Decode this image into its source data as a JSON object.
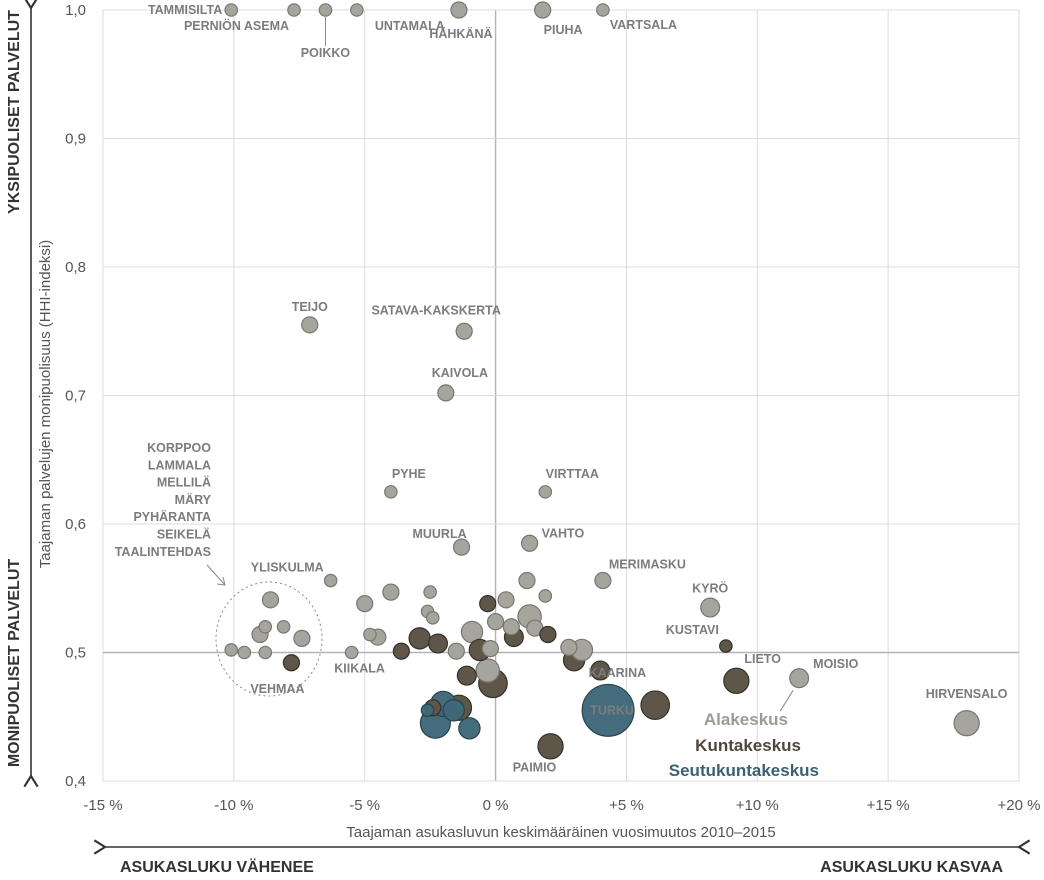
{
  "chart_data": {
    "type": "scatter",
    "xlabel": "Taajaman asukasluvun keskimääräinen vuosimuutos 2010–2015",
    "ylabel": "Taajaman palvelujen monipuolisuus (HHI-indeksi)",
    "xlim": [
      -15,
      20
    ],
    "ylim": [
      0.4,
      1.0
    ],
    "x_ticks": [
      "-15 %",
      "-10 %",
      "-5 %",
      "0 %",
      "+5 %",
      "+10 %",
      "+15 %",
      "+20 %"
    ],
    "y_ticks": [
      "0,4",
      "0,5",
      "0,6",
      "0,7",
      "0,8",
      "0,9",
      "1,0"
    ],
    "grid": true,
    "side_labels": {
      "top_left": "YKSIPUOLISET PALVELUT",
      "bottom_left": "MONIPUOLISET PALVELUT",
      "bottom_left_arrow": "ASUKASLUKU VÄHENEE",
      "bottom_right_arrow": "ASUKASLUKU KASVAA"
    },
    "series": [
      {
        "name": "Alakeskus",
        "color": "#a5a49d"
      },
      {
        "name": "Kuntakeskus",
        "color": "#5e5649"
      },
      {
        "name": "Seutukuntakeskus",
        "color": "#3f6778"
      }
    ],
    "points": [
      {
        "label": "TAMMISILTA",
        "x": -10.1,
        "y": 1.0,
        "size": 1,
        "category": 0
      },
      {
        "label": "PERNIÖN ASEMA",
        "x": -7.7,
        "y": 1.0,
        "size": 1,
        "category": 0
      },
      {
        "label": "POIKKO",
        "x": -6.5,
        "y": 1.0,
        "size": 1,
        "category": 0
      },
      {
        "label": "UNTAMALA",
        "x": -5.3,
        "y": 1.0,
        "size": 1,
        "category": 0
      },
      {
        "label": "HÄHKÄNÄ",
        "x": -1.4,
        "y": 1.0,
        "size": 2,
        "category": 0
      },
      {
        "label": "PIUHA",
        "x": 1.8,
        "y": 1.0,
        "size": 2,
        "category": 0
      },
      {
        "label": "VARTSALA",
        "x": 4.1,
        "y": 1.0,
        "size": 1,
        "category": 0
      },
      {
        "label": "TEIJO",
        "x": -7.1,
        "y": 0.755,
        "size": 2,
        "category": 0
      },
      {
        "label": "SATAVA-KAKSKERTA",
        "x": -1.2,
        "y": 0.75,
        "size": 2,
        "category": 0
      },
      {
        "label": "KAIVOLA",
        "x": -1.9,
        "y": 0.702,
        "size": 2,
        "category": 0
      },
      {
        "label": "PYHE",
        "x": -4.0,
        "y": 0.625,
        "size": 1,
        "category": 0
      },
      {
        "label": "VIRTTAA",
        "x": 1.9,
        "y": 0.625,
        "size": 1,
        "category": 0
      },
      {
        "label": "MUURLA",
        "x": -1.3,
        "y": 0.582,
        "size": 2,
        "category": 0
      },
      {
        "label": "VAHTO",
        "x": 1.3,
        "y": 0.585,
        "size": 2,
        "category": 0
      },
      {
        "label": "YLISKULMA",
        "x": -6.3,
        "y": 0.556,
        "size": 1,
        "category": 0
      },
      {
        "label": "MERIMASKU",
        "x": 4.1,
        "y": 0.556,
        "size": 2,
        "category": 0
      },
      {
        "label": "KYRÖ",
        "x": 8.2,
        "y": 0.535,
        "size": 3,
        "category": 0
      },
      {
        "label": "KUSTAVI",
        "x": 8.8,
        "y": 0.505,
        "size": 1,
        "category": 1
      },
      {
        "label": "KIIKALA",
        "x": -5.5,
        "y": 0.5,
        "size": 1,
        "category": 0
      },
      {
        "label": "VEHMAA",
        "x": -7.8,
        "y": 0.492,
        "size": 2,
        "category": 1
      },
      {
        "label": "LIETO",
        "x": 9.2,
        "y": 0.478,
        "size": 6,
        "category": 1
      },
      {
        "label": "MOISIO",
        "x": 11.6,
        "y": 0.48,
        "size": 3,
        "category": 0
      },
      {
        "label": "KAARINA",
        "x": 6.1,
        "y": 0.459,
        "size": 8,
        "category": 1
      },
      {
        "label": "HIRVENSALO",
        "x": 18.0,
        "y": 0.445,
        "size": 6,
        "category": 0
      },
      {
        "label": "TURKU",
        "x": 4.3,
        "y": 0.455,
        "size": 30,
        "category": 2
      },
      {
        "label": "PAIMIO",
        "x": 2.1,
        "y": 0.427,
        "size": 6,
        "category": 1
      },
      {
        "label": "",
        "x": -10.1,
        "y": 0.502,
        "size": 1,
        "category": 0
      },
      {
        "label": "",
        "x": -9.6,
        "y": 0.5,
        "size": 1,
        "category": 0
      },
      {
        "label": "",
        "x": -9.0,
        "y": 0.514,
        "size": 2,
        "category": 0
      },
      {
        "label": "",
        "x": -8.8,
        "y": 0.52,
        "size": 1,
        "category": 0
      },
      {
        "label": "",
        "x": -8.8,
        "y": 0.5,
        "size": 1,
        "category": 0
      },
      {
        "label": "",
        "x": -8.6,
        "y": 0.541,
        "size": 2,
        "category": 0
      },
      {
        "label": "",
        "x": -8.1,
        "y": 0.52,
        "size": 1,
        "category": 0
      },
      {
        "label": "",
        "x": -7.4,
        "y": 0.511,
        "size": 2,
        "category": 0
      },
      {
        "label": "",
        "x": -5.0,
        "y": 0.538,
        "size": 2,
        "category": 0
      },
      {
        "label": "",
        "x": -4.8,
        "y": 0.514,
        "size": 1,
        "category": 0
      },
      {
        "label": "",
        "x": -4.5,
        "y": 0.512,
        "size": 2,
        "category": 0
      },
      {
        "label": "",
        "x": -4.0,
        "y": 0.547,
        "size": 2,
        "category": 0
      },
      {
        "label": "",
        "x": -3.6,
        "y": 0.501,
        "size": 2,
        "category": 1
      },
      {
        "label": "",
        "x": -2.9,
        "y": 0.511,
        "size": 4,
        "category": 1
      },
      {
        "label": "",
        "x": -2.5,
        "y": 0.547,
        "size": 1,
        "category": 0
      },
      {
        "label": "",
        "x": -2.6,
        "y": 0.532,
        "size": 1,
        "category": 0
      },
      {
        "label": "",
        "x": -2.4,
        "y": 0.527,
        "size": 1,
        "category": 0
      },
      {
        "label": "",
        "x": -2.2,
        "y": 0.507,
        "size": 3,
        "category": 1
      },
      {
        "label": "",
        "x": -1.5,
        "y": 0.501,
        "size": 2,
        "category": 0
      },
      {
        "label": "",
        "x": -1.1,
        "y": 0.482,
        "size": 3,
        "category": 1
      },
      {
        "label": "",
        "x": -0.9,
        "y": 0.516,
        "size": 4,
        "category": 0
      },
      {
        "label": "",
        "x": -0.6,
        "y": 0.502,
        "size": 4,
        "category": 1
      },
      {
        "label": "",
        "x": -0.3,
        "y": 0.538,
        "size": 2,
        "category": 1
      },
      {
        "label": "",
        "x": -0.3,
        "y": 0.486,
        "size": 5,
        "category": 0
      },
      {
        "label": "",
        "x": -0.2,
        "y": 0.503,
        "size": 2,
        "category": 0
      },
      {
        "label": "",
        "x": -0.1,
        "y": 0.476,
        "size": 8,
        "category": 1
      },
      {
        "label": "",
        "x": 0.0,
        "y": 0.524,
        "size": 2,
        "category": 0
      },
      {
        "label": "",
        "x": 0.4,
        "y": 0.541,
        "size": 2,
        "category": 0
      },
      {
        "label": "",
        "x": 0.6,
        "y": 0.52,
        "size": 2,
        "category": 0
      },
      {
        "label": "",
        "x": 0.7,
        "y": 0.512,
        "size": 3,
        "category": 1
      },
      {
        "label": "",
        "x": 1.2,
        "y": 0.556,
        "size": 2,
        "category": 0
      },
      {
        "label": "",
        "x": 1.3,
        "y": 0.528,
        "size": 5,
        "category": 0
      },
      {
        "label": "",
        "x": 1.5,
        "y": 0.519,
        "size": 2,
        "category": 0
      },
      {
        "label": "",
        "x": 1.9,
        "y": 0.544,
        "size": 1,
        "category": 0
      },
      {
        "label": "",
        "x": 2.0,
        "y": 0.514,
        "size": 2,
        "category": 1
      },
      {
        "label": "",
        "x": 2.8,
        "y": 0.504,
        "size": 2,
        "category": 0
      },
      {
        "label": "",
        "x": 3.0,
        "y": 0.494,
        "size": 4,
        "category": 1
      },
      {
        "label": "",
        "x": 3.3,
        "y": 0.502,
        "size": 4,
        "category": 0
      },
      {
        "label": "",
        "x": 4.0,
        "y": 0.486,
        "size": 3,
        "category": 1
      },
      {
        "label": "",
        "x": -2.4,
        "y": 0.457,
        "size": 2,
        "category": 1
      },
      {
        "label": "",
        "x": -1.4,
        "y": 0.457,
        "size": 6,
        "category": 1
      },
      {
        "label": "",
        "x": -2.6,
        "y": 0.455,
        "size": 1,
        "category": 2
      },
      {
        "label": "",
        "x": -2.0,
        "y": 0.46,
        "size": 6,
        "category": 2
      },
      {
        "label": "",
        "x": -1.6,
        "y": 0.455,
        "size": 4,
        "category": 2
      },
      {
        "label": "",
        "x": -2.3,
        "y": 0.445,
        "size": 9,
        "category": 2
      },
      {
        "label": "",
        "x": -1.0,
        "y": 0.441,
        "size": 4,
        "category": 2
      }
    ],
    "cluster_labels": [
      "KORPPOO",
      "LAMMALA",
      "MELLILÄ",
      "MÄRY",
      "PYHÄRANTA",
      "SEIKELÄ",
      "TAALINTEHDAS"
    ]
  }
}
